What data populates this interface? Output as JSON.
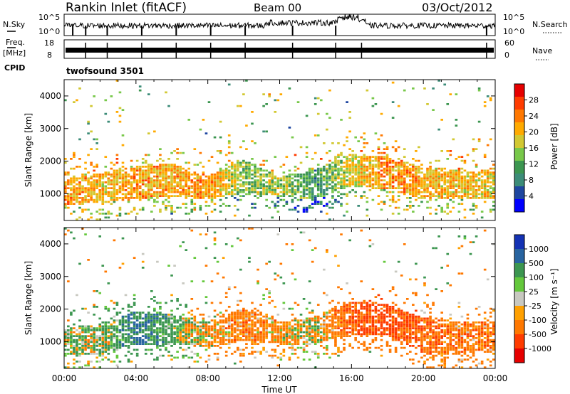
{
  "header": {
    "station": "Rankin Inlet (fitACF)",
    "beam": "Beam 00",
    "date": "03/Oct/2012"
  },
  "panels": {
    "nsky_label": "N.Sky",
    "nsky_ticks": [
      "10^5",
      "10^0"
    ],
    "nsearch_label": "N.Search",
    "nsearch_ticks": [
      "10^5",
      "10^0"
    ],
    "freq_label": "Freq.",
    "freq_unit": "[MHz]",
    "freq_ticks": [
      "18",
      "8"
    ],
    "nave_label": "Nave",
    "nave_ticks": [
      "60",
      "0"
    ],
    "cpid_label": "CPID",
    "cpid_value": "twofsound 3501"
  },
  "colorbars": {
    "power": {
      "label": "Power [dB]",
      "ticks": [
        "28",
        "24",
        "20",
        "16",
        "12",
        "8",
        "4"
      ],
      "colors": [
        "#e60000",
        "#ff3c00",
        "#ff7800",
        "#ffaa00",
        "#d2c832",
        "#78c84a",
        "#3c9650",
        "#3c8c78",
        "#1e46a0",
        "#0000ff"
      ]
    },
    "velocity": {
      "label": "Velocity [m s⁻¹]",
      "ticks": [
        "1000",
        "500",
        "100",
        "25",
        "-25",
        "-100",
        "-500",
        "-1000"
      ],
      "colors": [
        "#1432b4",
        "#2864a0",
        "#3c9650",
        "#64c83c",
        "#c8c8c0",
        "#ffa000",
        "#ff7800",
        "#ff3c00",
        "#e60000"
      ]
    }
  },
  "chart_data": [
    {
      "type": "heatmap",
      "title": "Power",
      "xlabel": "Time UT",
      "ylabel": "Slant Range [km]",
      "x_ticks": [
        "00:00",
        "04:00",
        "08:00",
        "12:00",
        "16:00",
        "20:00",
        "00:00"
      ],
      "xlim": [
        0,
        24
      ],
      "ylim": [
        180,
        4500
      ],
      "y_ticks": [
        1000,
        2000,
        3000,
        4000
      ],
      "colorbar_range": [
        0,
        30
      ],
      "main_band": [
        {
          "t": 0,
          "lo": 600,
          "hi": 1400,
          "v": 27
        },
        {
          "t": 2,
          "lo": 700,
          "hi": 1600,
          "v": 24
        },
        {
          "t": 4,
          "lo": 800,
          "hi": 1800,
          "v": 26
        },
        {
          "t": 6,
          "lo": 900,
          "hi": 1900,
          "v": 25
        },
        {
          "t": 8,
          "lo": 800,
          "hi": 1500,
          "v": 27
        },
        {
          "t": 10,
          "lo": 1000,
          "hi": 2000,
          "v": 18
        },
        {
          "t": 12,
          "lo": 900,
          "hi": 1500,
          "v": 20
        },
        {
          "t": 14,
          "lo": 800,
          "hi": 1700,
          "v": 14
        },
        {
          "t": 16,
          "lo": 1200,
          "hi": 2200,
          "v": 22
        },
        {
          "t": 18,
          "lo": 1100,
          "hi": 2100,
          "v": 27
        },
        {
          "t": 20,
          "lo": 800,
          "hi": 1800,
          "v": 25
        },
        {
          "t": 22,
          "lo": 800,
          "hi": 1700,
          "v": 24
        },
        {
          "t": 24,
          "lo": 800,
          "hi": 1600,
          "v": 23
        }
      ]
    },
    {
      "type": "heatmap",
      "title": "Velocity",
      "xlabel": "Time UT",
      "ylabel": "Slant Range [km]",
      "x_ticks": [
        "00:00",
        "04:00",
        "08:00",
        "12:00",
        "16:00",
        "20:00",
        "00:00"
      ],
      "xlim": [
        0,
        24
      ],
      "ylim": [
        180,
        4500
      ],
      "y_ticks": [
        1000,
        2000,
        3000,
        4000
      ],
      "colorbar_range": [
        -1000,
        1000
      ],
      "main_band": [
        {
          "t": 0,
          "lo": 600,
          "hi": 1400,
          "v": 100
        },
        {
          "t": 2,
          "lo": 600,
          "hi": 1500,
          "v": 50
        },
        {
          "t": 4,
          "lo": 900,
          "hi": 1900,
          "v": 500
        },
        {
          "t": 6,
          "lo": 900,
          "hi": 1800,
          "v": 200
        },
        {
          "t": 8,
          "lo": 800,
          "hi": 1600,
          "v": -150
        },
        {
          "t": 10,
          "lo": 1000,
          "hi": 2000,
          "v": -300
        },
        {
          "t": 12,
          "lo": 900,
          "hi": 1600,
          "v": -200
        },
        {
          "t": 14,
          "lo": 900,
          "hi": 1700,
          "v": 0
        },
        {
          "t": 16,
          "lo": 1200,
          "hi": 2200,
          "v": -500
        },
        {
          "t": 18,
          "lo": 1200,
          "hi": 2100,
          "v": -700
        },
        {
          "t": 20,
          "lo": 600,
          "hi": 1700,
          "v": -400
        },
        {
          "t": 22,
          "lo": 600,
          "hi": 1600,
          "v": -300
        },
        {
          "t": 24,
          "lo": 700,
          "hi": 1600,
          "v": -300
        }
      ]
    }
  ]
}
